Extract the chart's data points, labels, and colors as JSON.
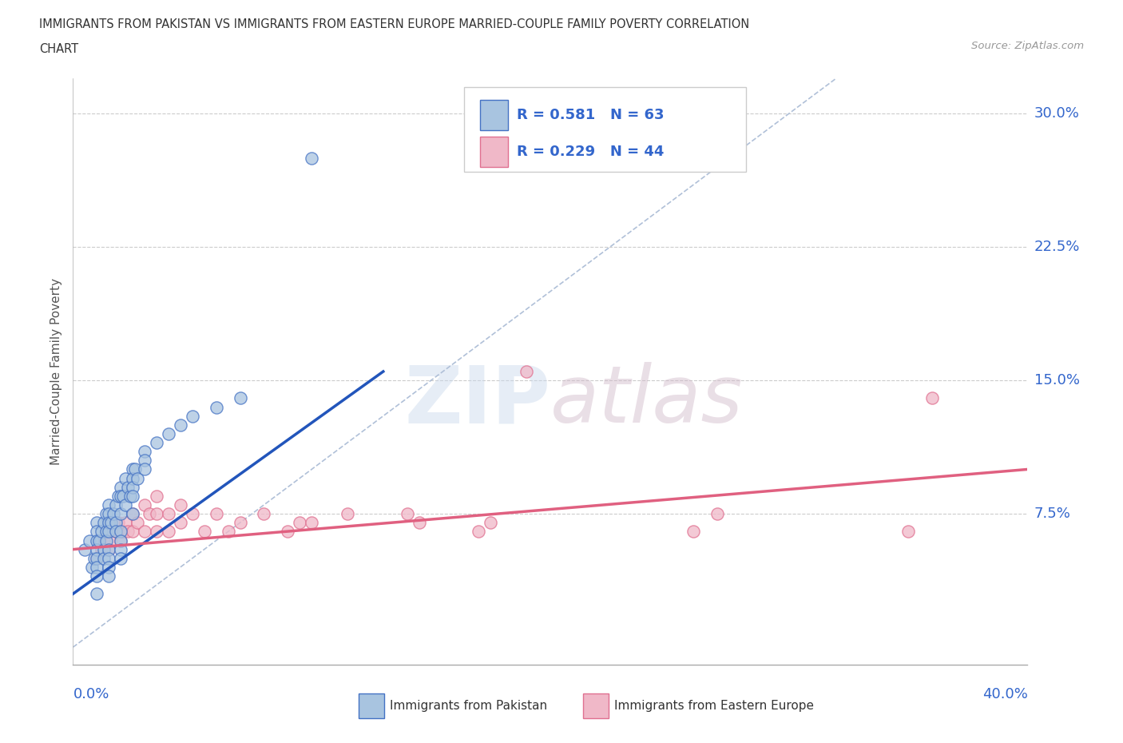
{
  "title_line1": "IMMIGRANTS FROM PAKISTAN VS IMMIGRANTS FROM EASTERN EUROPE MARRIED-COUPLE FAMILY POVERTY CORRELATION",
  "title_line2": "CHART",
  "source_text": "Source: ZipAtlas.com",
  "ylabel": "Married-Couple Family Poverty",
  "xlim": [
    0.0,
    0.4
  ],
  "ylim": [
    -0.01,
    0.32
  ],
  "ytick_labels": [
    "7.5%",
    "15.0%",
    "22.5%",
    "30.0%"
  ],
  "ytick_values": [
    0.075,
    0.15,
    0.225,
    0.3
  ],
  "pakistan_color": "#a8c4e0",
  "pakistan_edge_color": "#4472c4",
  "eastern_europe_color": "#f0b8c8",
  "eastern_europe_edge_color": "#e07090",
  "pakistan_line_color": "#2255bb",
  "eastern_europe_line_color": "#e06080",
  "diagonal_color": "#b0c0d8",
  "legend_R1": "0.581",
  "legend_N1": "63",
  "legend_R2": "0.229",
  "legend_N2": "44",
  "background_color": "#ffffff",
  "grid_color": "#cccccc",
  "pakistan_scatter": [
    [
      0.005,
      0.055
    ],
    [
      0.007,
      0.06
    ],
    [
      0.008,
      0.045
    ],
    [
      0.009,
      0.05
    ],
    [
      0.01,
      0.07
    ],
    [
      0.01,
      0.065
    ],
    [
      0.01,
      0.06
    ],
    [
      0.01,
      0.055
    ],
    [
      0.01,
      0.05
    ],
    [
      0.01,
      0.045
    ],
    [
      0.01,
      0.04
    ],
    [
      0.01,
      0.03
    ],
    [
      0.011,
      0.06
    ],
    [
      0.012,
      0.065
    ],
    [
      0.013,
      0.07
    ],
    [
      0.013,
      0.055
    ],
    [
      0.013,
      0.05
    ],
    [
      0.014,
      0.075
    ],
    [
      0.014,
      0.065
    ],
    [
      0.014,
      0.06
    ],
    [
      0.015,
      0.08
    ],
    [
      0.015,
      0.075
    ],
    [
      0.015,
      0.07
    ],
    [
      0.015,
      0.065
    ],
    [
      0.015,
      0.055
    ],
    [
      0.015,
      0.05
    ],
    [
      0.015,
      0.045
    ],
    [
      0.015,
      0.04
    ],
    [
      0.016,
      0.07
    ],
    [
      0.017,
      0.075
    ],
    [
      0.018,
      0.08
    ],
    [
      0.018,
      0.07
    ],
    [
      0.018,
      0.065
    ],
    [
      0.019,
      0.085
    ],
    [
      0.02,
      0.09
    ],
    [
      0.02,
      0.085
    ],
    [
      0.02,
      0.075
    ],
    [
      0.02,
      0.065
    ],
    [
      0.02,
      0.06
    ],
    [
      0.02,
      0.055
    ],
    [
      0.02,
      0.05
    ],
    [
      0.021,
      0.085
    ],
    [
      0.022,
      0.095
    ],
    [
      0.022,
      0.08
    ],
    [
      0.023,
      0.09
    ],
    [
      0.024,
      0.085
    ],
    [
      0.025,
      0.1
    ],
    [
      0.025,
      0.095
    ],
    [
      0.025,
      0.09
    ],
    [
      0.025,
      0.085
    ],
    [
      0.025,
      0.075
    ],
    [
      0.026,
      0.1
    ],
    [
      0.027,
      0.095
    ],
    [
      0.03,
      0.11
    ],
    [
      0.03,
      0.105
    ],
    [
      0.03,
      0.1
    ],
    [
      0.035,
      0.115
    ],
    [
      0.04,
      0.12
    ],
    [
      0.045,
      0.125
    ],
    [
      0.05,
      0.13
    ],
    [
      0.06,
      0.135
    ],
    [
      0.07,
      0.14
    ],
    [
      0.1,
      0.275
    ]
  ],
  "eastern_europe_scatter": [
    [
      0.01,
      0.05
    ],
    [
      0.012,
      0.055
    ],
    [
      0.013,
      0.06
    ],
    [
      0.014,
      0.065
    ],
    [
      0.015,
      0.055
    ],
    [
      0.016,
      0.06
    ],
    [
      0.018,
      0.065
    ],
    [
      0.019,
      0.07
    ],
    [
      0.02,
      0.06
    ],
    [
      0.021,
      0.065
    ],
    [
      0.022,
      0.07
    ],
    [
      0.023,
      0.065
    ],
    [
      0.025,
      0.075
    ],
    [
      0.025,
      0.065
    ],
    [
      0.027,
      0.07
    ],
    [
      0.03,
      0.08
    ],
    [
      0.03,
      0.065
    ],
    [
      0.032,
      0.075
    ],
    [
      0.035,
      0.085
    ],
    [
      0.035,
      0.075
    ],
    [
      0.035,
      0.065
    ],
    [
      0.04,
      0.075
    ],
    [
      0.04,
      0.065
    ],
    [
      0.045,
      0.08
    ],
    [
      0.045,
      0.07
    ],
    [
      0.05,
      0.075
    ],
    [
      0.055,
      0.065
    ],
    [
      0.06,
      0.075
    ],
    [
      0.065,
      0.065
    ],
    [
      0.07,
      0.07
    ],
    [
      0.08,
      0.075
    ],
    [
      0.09,
      0.065
    ],
    [
      0.095,
      0.07
    ],
    [
      0.1,
      0.07
    ],
    [
      0.115,
      0.075
    ],
    [
      0.14,
      0.075
    ],
    [
      0.145,
      0.07
    ],
    [
      0.17,
      0.065
    ],
    [
      0.175,
      0.07
    ],
    [
      0.19,
      0.155
    ],
    [
      0.26,
      0.065
    ],
    [
      0.27,
      0.075
    ],
    [
      0.35,
      0.065
    ],
    [
      0.36,
      0.14
    ]
  ],
  "pak_line": [
    [
      0.0,
      0.03
    ],
    [
      0.13,
      0.155
    ]
  ],
  "ee_line": [
    [
      0.0,
      0.055
    ],
    [
      0.4,
      0.1
    ]
  ]
}
